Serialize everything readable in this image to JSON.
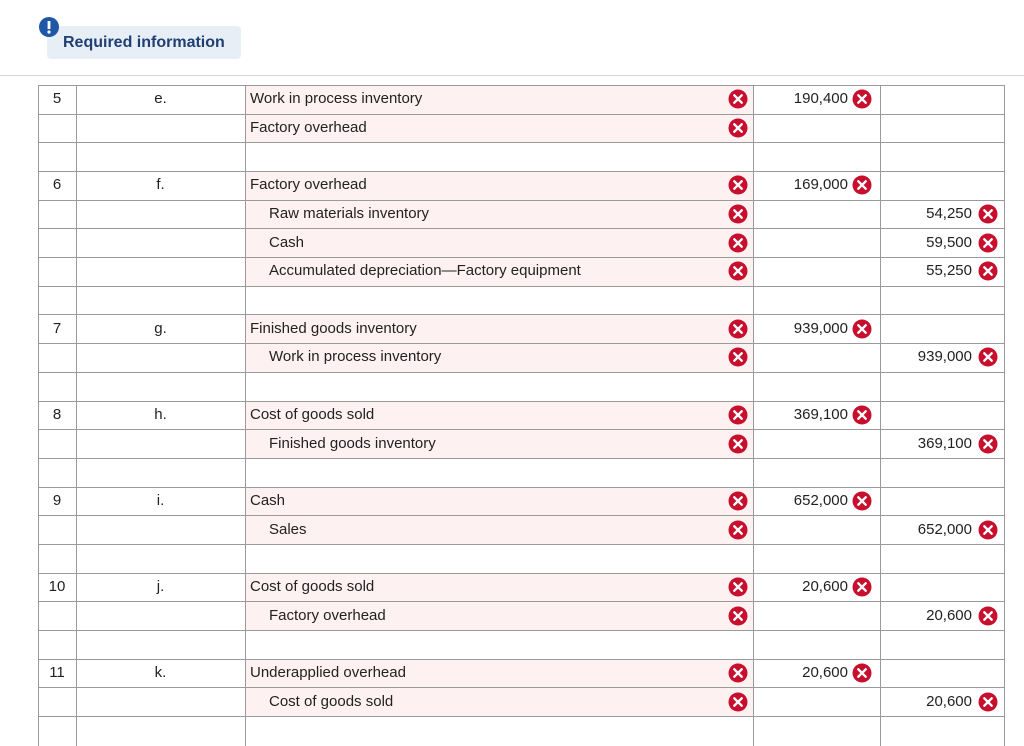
{
  "notice": {
    "label": "Required information"
  },
  "entries": [
    {
      "number": "5",
      "letter": "e.",
      "lines": [
        {
          "account": "Work in process inventory",
          "debit": "190,400"
        },
        {
          "account": "Factory overhead"
        }
      ]
    },
    {
      "number": "6",
      "letter": "f.",
      "lines": [
        {
          "account": "Factory overhead",
          "debit": "169,000"
        },
        {
          "account": "Raw materials inventory",
          "indent": true,
          "credit": "54,250"
        },
        {
          "account": "Cash",
          "indent": true,
          "credit": "59,500"
        },
        {
          "account": "Accumulated depreciation—Factory equipment",
          "indent": true,
          "credit": "55,250"
        }
      ]
    },
    {
      "number": "7",
      "letter": "g.",
      "lines": [
        {
          "account": "Finished goods inventory",
          "debit": "939,000"
        },
        {
          "account": "Work in process inventory",
          "indent": true,
          "credit": "939,000"
        }
      ]
    },
    {
      "number": "8",
      "letter": "h.",
      "lines": [
        {
          "account": "Cost of goods sold",
          "debit": "369,100"
        },
        {
          "account": "Finished goods inventory",
          "indent": true,
          "credit": "369,100"
        }
      ]
    },
    {
      "number": "9",
      "letter": "i.",
      "lines": [
        {
          "account": "Cash",
          "debit": "652,000"
        },
        {
          "account": "Sales",
          "indent": true,
          "credit": "652,000"
        }
      ]
    },
    {
      "number": "10",
      "letter": "j.",
      "lines": [
        {
          "account": "Cost of goods sold",
          "debit": "20,600"
        },
        {
          "account": "Factory overhead",
          "indent": true,
          "credit": "20,600"
        }
      ]
    },
    {
      "number": "11",
      "letter": "k.",
      "lines": [
        {
          "account": "Underapplied overhead",
          "debit": "20,600"
        },
        {
          "account": "Cost of goods sold",
          "indent": true,
          "credit": "20,600"
        }
      ]
    }
  ]
}
